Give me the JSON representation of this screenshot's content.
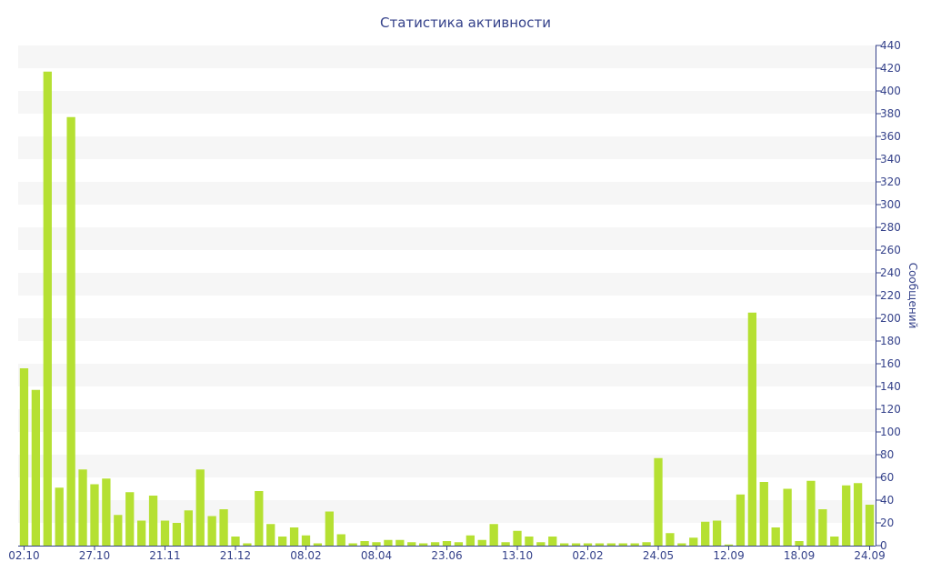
{
  "chart_data": {
    "type": "bar",
    "title": "Статистика активности",
    "xlabel": "",
    "ylabel": "Сообщений",
    "ylim": [
      0,
      440
    ],
    "y_ticks": [
      0,
      20,
      40,
      60,
      80,
      100,
      120,
      140,
      160,
      180,
      200,
      220,
      240,
      260,
      280,
      300,
      320,
      340,
      360,
      380,
      400,
      420,
      440
    ],
    "x_tick_labels": [
      {
        "index": 0,
        "label": "02.10"
      },
      {
        "index": 6,
        "label": "27.10"
      },
      {
        "index": 12,
        "label": "21.11"
      },
      {
        "index": 18,
        "label": "21.12"
      },
      {
        "index": 24,
        "label": "08.02"
      },
      {
        "index": 30,
        "label": "08.04"
      },
      {
        "index": 36,
        "label": "23.06"
      },
      {
        "index": 42,
        "label": "13.10"
      },
      {
        "index": 48,
        "label": "02.02"
      },
      {
        "index": 54,
        "label": "24.05"
      },
      {
        "index": 60,
        "label": "12.09"
      },
      {
        "index": 66,
        "label": "18.09"
      },
      {
        "index": 72,
        "label": "24.09"
      }
    ],
    "values": [
      156,
      137,
      417,
      51,
      377,
      67,
      54,
      59,
      27,
      47,
      22,
      44,
      22,
      20,
      31,
      67,
      26,
      32,
      8,
      2,
      48,
      19,
      8,
      16,
      9,
      2,
      30,
      10,
      2,
      4,
      3,
      5,
      5,
      3,
      2,
      3,
      4,
      3,
      9,
      5,
      19,
      3,
      13,
      8,
      3,
      8,
      2,
      2,
      2,
      2,
      2,
      2,
      2,
      3,
      77,
      11,
      2,
      7,
      21,
      22,
      1,
      45,
      205,
      56,
      16,
      50,
      4,
      57,
      32,
      8,
      53,
      55,
      36
    ],
    "bar_color": "#b5e032",
    "axis_color": "#34418a",
    "band_color": "#f6f6f6",
    "grid": true,
    "y_axis_side": "right"
  }
}
